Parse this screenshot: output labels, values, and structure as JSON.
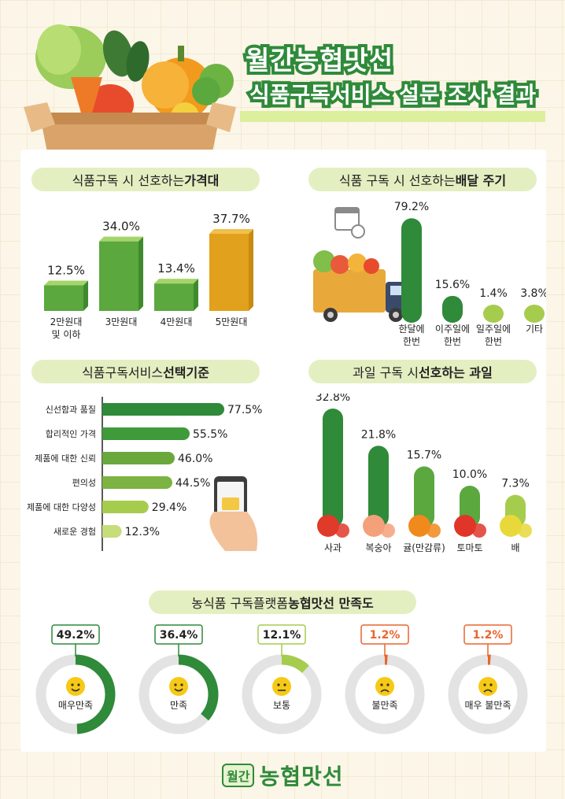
{
  "header": {
    "title_line1": "월간농협맛선",
    "title_line2": "식품구독서비스 설문 조사 결과"
  },
  "sections": {
    "price_title_a": "식품구독 시 선호하는 ",
    "price_title_b": "가격대",
    "delivery_title_a": "식품 구독 시 선호하는 ",
    "delivery_title_b": "배달 주기",
    "criteria_title_a": "식품구독서비스 ",
    "criteria_title_b": "선택기준",
    "fruit_title_a": "과일 구독 시 ",
    "fruit_title_b": "선호하는 과일",
    "satisfaction_title_a": "농식품 구독플랫폼 ",
    "satisfaction_title_b": "농협맛선 만족도"
  },
  "footer": {
    "badge": "월간",
    "brand": "농협맛선"
  },
  "colors": {
    "green_dark": "#2f8a3a",
    "green_mid": "#5aa83e",
    "green_light": "#a6cc4e",
    "orange": "#e1a11c",
    "red_accent": "#e8652f",
    "ring_grey": "#e3e3e3"
  },
  "chart_data": [
    {
      "type": "bar",
      "title": "식품구독 시 선호하는 가격대",
      "categories": [
        "2만원대\n및 이하",
        "3만원대",
        "4만원대",
        "5만원대"
      ],
      "values": [
        12.5,
        34.0,
        13.4,
        37.7
      ],
      "labels": [
        "12.5%",
        "34.0%",
        "13.4%",
        "37.7%"
      ],
      "unit": "%"
    },
    {
      "type": "bar",
      "title": "식품 구독 시 선호하는 배달 주기",
      "categories": [
        "한달에\n한번",
        "이주일에\n한번",
        "일주일에\n한번",
        "기타"
      ],
      "values": [
        79.2,
        15.6,
        1.4,
        3.8
      ],
      "labels": [
        "79.2%",
        "15.6%",
        "1.4%",
        "3.8%"
      ],
      "unit": "%"
    },
    {
      "type": "bar",
      "orientation": "horizontal",
      "title": "식품구독서비스 선택기준",
      "categories": [
        "신선함과 품질",
        "합리적인 가격",
        "제품에 대한 신뢰",
        "편의성",
        "제품에 대한 다양성",
        "새로운 경험"
      ],
      "values": [
        77.5,
        55.5,
        46.0,
        44.5,
        29.4,
        12.3
      ],
      "labels": [
        "77.5%",
        "55.5%",
        "46.0%",
        "44.5%",
        "29.4%",
        "12.3%"
      ],
      "unit": "%"
    },
    {
      "type": "bar",
      "title": "과일 구독 시 선호하는 과일",
      "categories": [
        "사과",
        "복숭아",
        "귤(만감류)",
        "토마토",
        "배"
      ],
      "values": [
        32.8,
        21.8,
        15.7,
        10.0,
        7.3
      ],
      "labels": [
        "32.8%",
        "21.8%",
        "15.7%",
        "10.0%",
        "7.3%"
      ],
      "unit": "%"
    },
    {
      "type": "pie",
      "title": "농식품 구독플랫폼 농협맛선 만족도",
      "categories": [
        "매우만족",
        "만족",
        "보통",
        "불만족",
        "매우 불만족"
      ],
      "values": [
        49.2,
        36.4,
        12.1,
        1.2,
        1.2
      ],
      "labels": [
        "49.2%",
        "36.4%",
        "12.1%",
        "1.2%",
        "1.2%"
      ],
      "unit": "%"
    }
  ]
}
